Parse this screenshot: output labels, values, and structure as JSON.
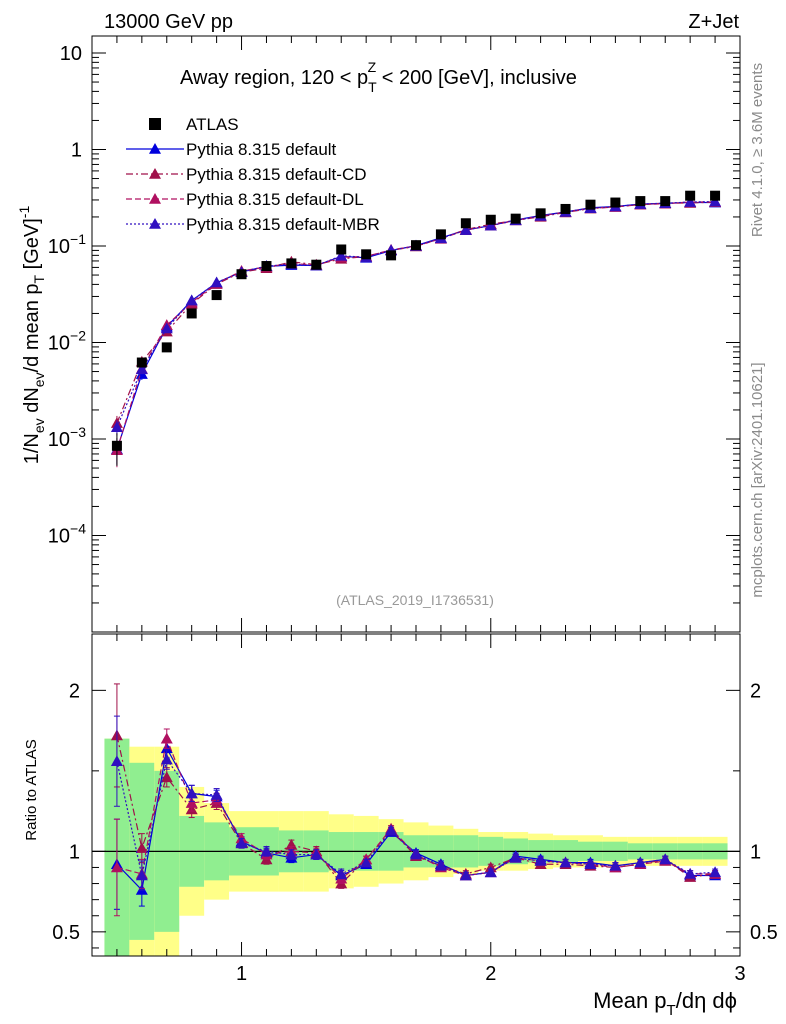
{
  "header": {
    "left": "13000 GeV pp",
    "right": "Z+Jet"
  },
  "side_labels": {
    "rivet": "Rivet 4.1.0, ≥ 3.6M events",
    "mcplots": "mcplots.cern.ch [arXiv:2401.10621]"
  },
  "colors": {
    "data": "#000000",
    "default": "#0000dd",
    "cd": "#a0104a",
    "dl": "#b01060",
    "mbr": "#3010c0",
    "band_inner": "#90ee90",
    "band_outer": "#ffff88"
  },
  "chart_data": {
    "type": "scatter",
    "title": "Away region, 120 < p_T^Z < 200 [GeV], inclusive",
    "analysis_id": "(ATLAS_2019_I1736531)",
    "xlabel": "Mean p_T/dη dφ",
    "ylabel": "1/N_ev dN_ev/d mean p_T [GeV]^-1",
    "ratio_ylabel": "Ratio to ATLAS",
    "xlim": [
      0.4,
      3.0
    ],
    "ylim": [
      1e-05,
      15
    ],
    "ratio_ylim": [
      0.35,
      2.35
    ],
    "x_ticks": [
      "1",
      "2",
      "3"
    ],
    "y_ticks": [
      "10^-4",
      "10^-3",
      "10^-2",
      "10^-1",
      "1",
      "10"
    ],
    "ratio_ticks": [
      "0.5",
      "1",
      "2"
    ],
    "x": [
      0.5,
      0.6,
      0.7,
      0.8,
      0.9,
      1.0,
      1.1,
      1.2,
      1.3,
      1.4,
      1.5,
      1.6,
      1.7,
      1.8,
      1.9,
      2.0,
      2.1,
      2.2,
      2.3,
      2.4,
      2.5,
      2.6,
      2.7,
      2.8,
      2.9
    ],
    "data": {
      "name": "ATLAS",
      "values": [
        0.00085,
        0.0062,
        0.0089,
        0.02,
        0.031,
        0.051,
        0.062,
        0.066,
        0.064,
        0.092,
        0.082,
        0.08,
        0.102,
        0.132,
        0.172,
        0.187,
        0.192,
        0.218,
        0.242,
        0.268,
        0.282,
        0.292,
        0.292,
        0.332,
        0.332
      ],
      "band_inner": [
        0.7,
        0.55,
        0.5,
        0.22,
        0.18,
        0.15,
        0.15,
        0.13,
        0.13,
        0.12,
        0.12,
        0.12,
        0.1,
        0.1,
        0.1,
        0.09,
        0.08,
        0.07,
        0.07,
        0.06,
        0.06,
        0.05,
        0.05,
        0.05,
        0.05
      ],
      "band_outer": [
        0.7,
        0.65,
        0.65,
        0.4,
        0.3,
        0.25,
        0.25,
        0.25,
        0.25,
        0.23,
        0.22,
        0.2,
        0.18,
        0.16,
        0.14,
        0.12,
        0.12,
        0.11,
        0.1,
        0.1,
        0.09,
        0.09,
        0.09,
        0.09,
        0.09
      ]
    },
    "series": [
      {
        "name": "Pythia 8.315 default",
        "style": "solid",
        "ratio": [
          0.92,
          0.76,
          1.64,
          1.36,
          1.34,
          1.06,
          0.99,
          0.96,
          0.98,
          0.85,
          0.92,
          1.12,
          0.99,
          0.92,
          0.85,
          0.87,
          0.97,
          0.95,
          0.93,
          0.93,
          0.91,
          0.93,
          0.95,
          0.85,
          0.85
        ],
        "ratio_err": [
          0.28,
          0.1,
          0.06,
          0.05,
          0.04,
          0.03,
          0.03,
          0.03,
          0.03,
          0.03,
          0.02,
          0.02,
          0.02,
          0.02,
          0.02,
          0.02,
          0.02,
          0.02,
          0.02,
          0.02,
          0.02,
          0.02,
          0.02,
          0.02,
          0.02
        ]
      },
      {
        "name": "Pythia 8.315 default-CD",
        "style": "dashdot",
        "ratio": [
          1.72,
          1.02,
          1.46,
          1.26,
          1.3,
          1.05,
          0.95,
          1.04,
          1.0,
          0.8,
          0.95,
          1.13,
          0.97,
          0.91,
          0.86,
          0.9,
          0.96,
          0.92,
          0.92,
          0.91,
          0.9,
          0.92,
          0.95,
          0.84,
          0.86
        ],
        "ratio_err": [
          0.32,
          0.09,
          0.06,
          0.05,
          0.04,
          0.03,
          0.03,
          0.03,
          0.03,
          0.03,
          0.02,
          0.02,
          0.02,
          0.02,
          0.02,
          0.02,
          0.02,
          0.02,
          0.02,
          0.02,
          0.02,
          0.02,
          0.02,
          0.02,
          0.02
        ]
      },
      {
        "name": "Pythia 8.315 default-DL",
        "style": "dashed",
        "ratio": [
          0.9,
          0.86,
          1.7,
          1.3,
          1.32,
          1.08,
          0.98,
          1.0,
          0.99,
          0.83,
          0.95,
          1.14,
          0.98,
          0.9,
          0.85,
          0.87,
          0.96,
          0.94,
          0.93,
          0.92,
          0.9,
          0.92,
          0.94,
          0.86,
          0.86
        ],
        "ratio_err": [
          0.3,
          0.09,
          0.06,
          0.05,
          0.04,
          0.03,
          0.03,
          0.03,
          0.03,
          0.03,
          0.02,
          0.02,
          0.02,
          0.02,
          0.02,
          0.02,
          0.02,
          0.02,
          0.02,
          0.02,
          0.02,
          0.02,
          0.02,
          0.02,
          0.02
        ]
      },
      {
        "name": "Pythia 8.315 default-MBR",
        "style": "dotted",
        "ratio": [
          1.56,
          0.85,
          1.57,
          1.36,
          1.35,
          1.05,
          1.0,
          0.98,
          0.98,
          0.86,
          0.93,
          1.13,
          0.98,
          0.91,
          0.85,
          0.87,
          0.96,
          0.94,
          0.93,
          0.92,
          0.91,
          0.93,
          0.95,
          0.86,
          0.87
        ],
        "ratio_err": [
          0.28,
          0.09,
          0.06,
          0.05,
          0.04,
          0.03,
          0.03,
          0.03,
          0.03,
          0.03,
          0.02,
          0.02,
          0.02,
          0.02,
          0.02,
          0.02,
          0.02,
          0.02,
          0.02,
          0.02,
          0.02,
          0.02,
          0.02,
          0.02,
          0.02
        ]
      }
    ]
  }
}
